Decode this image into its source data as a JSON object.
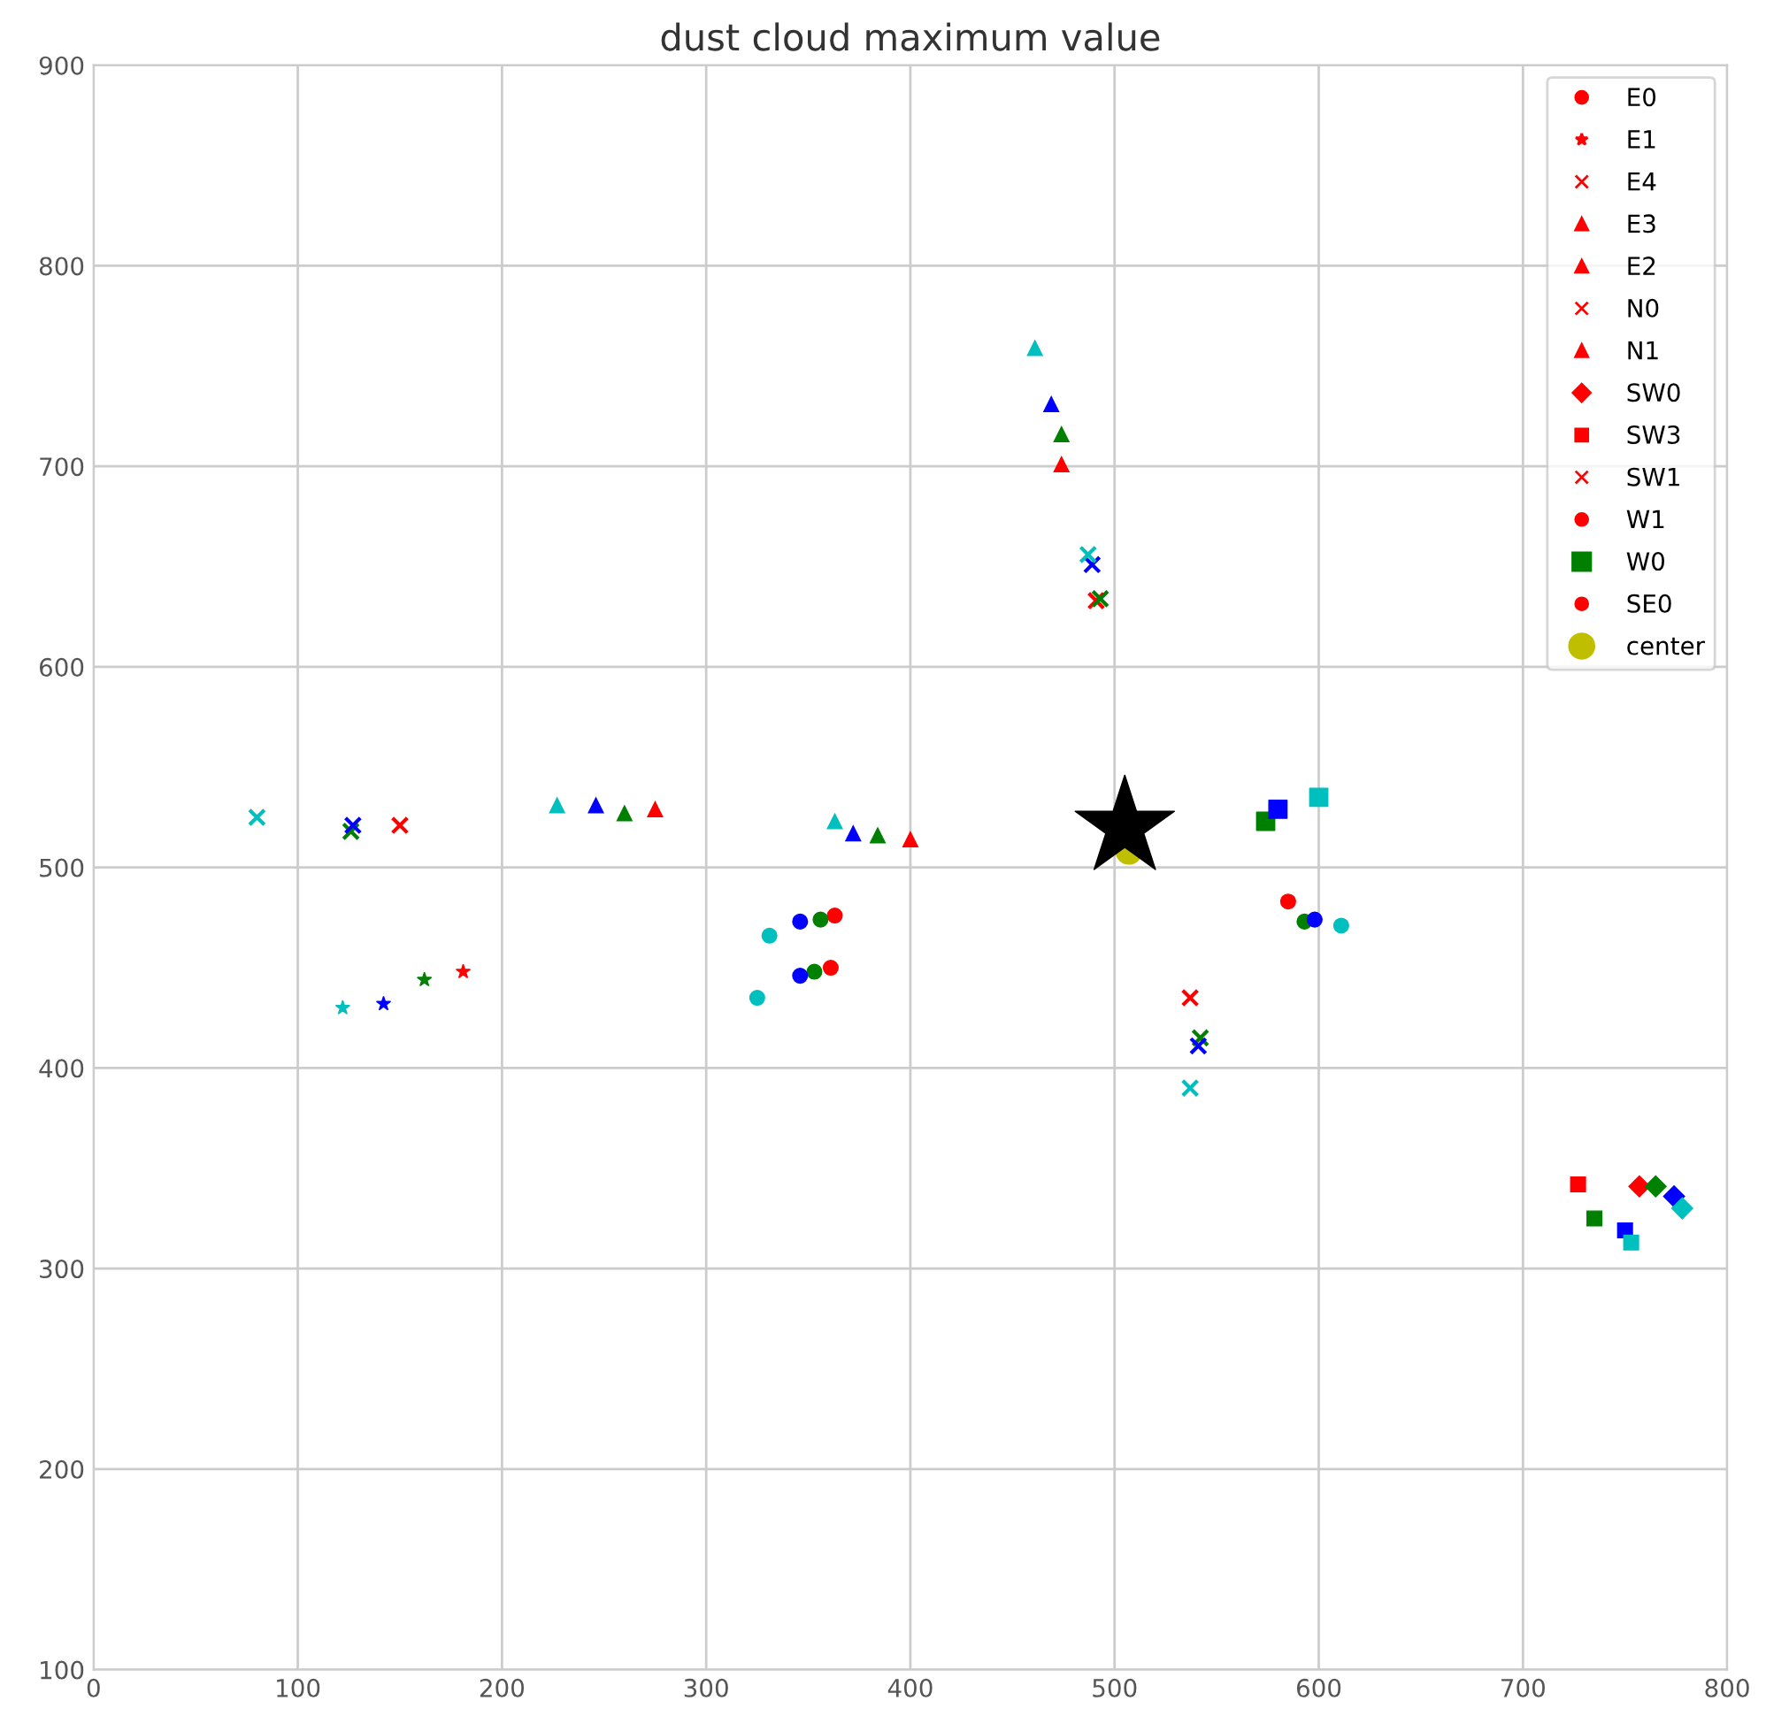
{
  "chart_data": {
    "type": "scatter",
    "title": "dust cloud maximum value",
    "xlim": [
      0,
      800
    ],
    "xticks": [
      0,
      100,
      200,
      300,
      400,
      500,
      600,
      700,
      800
    ],
    "ylim": [
      100,
      900
    ],
    "yticks": [
      100,
      200,
      300,
      400,
      500,
      600,
      700,
      800,
      900
    ],
    "grid": true,
    "legend": "top right",
    "series": [
      {
        "name": "E0",
        "marker": "circle",
        "x": [
          363,
          356,
          346,
          331
        ],
        "values": [
          476,
          474,
          473,
          466
        ],
        "colors": [
          "#ff0000",
          "#008000",
          "#0000ff",
          "#00bfbf"
        ]
      },
      {
        "name": "E1",
        "marker": "star",
        "x": [
          181,
          162,
          142,
          122
        ],
        "values": [
          448,
          444,
          432,
          430
        ],
        "colors": [
          "#ff0000",
          "#008000",
          "#0000ff",
          "#00bfbf"
        ]
      },
      {
        "name": "E4",
        "marker": "cross",
        "x": [
          150,
          126,
          127,
          80
        ],
        "values": [
          521,
          518,
          521,
          525
        ],
        "colors": [
          "#ff0000",
          "#008000",
          "#0000ff",
          "#00bfbf"
        ]
      },
      {
        "name": "E3",
        "marker": "triangle",
        "x": [
          275,
          260,
          246,
          227
        ],
        "values": [
          529,
          527,
          531,
          531
        ],
        "colors": [
          "#ff0000",
          "#008000",
          "#0000ff",
          "#00bfbf"
        ]
      },
      {
        "name": "E2",
        "marker": "triangle",
        "x": [
          400,
          384,
          372,
          363
        ],
        "values": [
          514,
          516,
          517,
          523
        ],
        "colors": [
          "#ff0000",
          "#008000",
          "#0000ff",
          "#00bfbf"
        ]
      },
      {
        "name": "N0",
        "marker": "cross",
        "x": [
          491,
          493,
          489,
          487
        ],
        "values": [
          633,
          634,
          651,
          656
        ],
        "colors": [
          "#ff0000",
          "#008000",
          "#0000ff",
          "#00bfbf"
        ]
      },
      {
        "name": "N1",
        "marker": "triangle",
        "x": [
          474,
          474,
          469,
          461
        ],
        "values": [
          701,
          716,
          731,
          759
        ],
        "colors": [
          "#ff0000",
          "#008000",
          "#0000ff",
          "#00bfbf"
        ]
      },
      {
        "name": "SW0",
        "marker": "diamond",
        "x": [
          757,
          765,
          774,
          778
        ],
        "values": [
          341,
          341,
          336,
          330
        ],
        "colors": [
          "#ff0000",
          "#008000",
          "#0000ff",
          "#00bfbf"
        ]
      },
      {
        "name": "SW3",
        "marker": "square",
        "x": [
          727,
          735,
          750,
          753
        ],
        "values": [
          342,
          325,
          319,
          313
        ],
        "colors": [
          "#ff0000",
          "#008000",
          "#0000ff",
          "#00bfbf"
        ]
      },
      {
        "name": "SW1",
        "marker": "cross",
        "x": [
          537,
          542,
          541,
          537
        ],
        "values": [
          435,
          415,
          411,
          390
        ],
        "colors": [
          "#ff0000",
          "#008000",
          "#0000ff",
          "#00bfbf"
        ]
      },
      {
        "name": "W1",
        "marker": "circle",
        "x": [
          361,
          353,
          346,
          325
        ],
        "values": [
          450,
          448,
          446,
          435
        ],
        "colors": [
          "#ff0000",
          "#008000",
          "#0000ff",
          "#00bfbf"
        ]
      },
      {
        "name": "W0",
        "type": "bubble",
        "marker": "square",
        "x": [
          null,
          574,
          580,
          600
        ],
        "values": [
          null,
          523,
          529,
          535
        ],
        "sizes": [
          null,
          0.107,
          0.107,
          0.107
        ],
        "colors": [
          "#ff0000",
          "#008000",
          "#0000ff",
          "#00bfbf"
        ]
      },
      {
        "name": "SE0",
        "marker": "circle",
        "x": [
          585,
          593,
          598,
          611
        ],
        "values": [
          483,
          473,
          474,
          471
        ],
        "colors": [
          "#ff0000",
          "#008000",
          "#0000ff",
          "#00bfbf"
        ]
      },
      {
        "name": "center",
        "type": "bubble",
        "marker": "circle",
        "x": [
          507
        ],
        "values": [
          508
        ],
        "sizes": [
          0.167
        ],
        "colors": [
          "#bfbf00"
        ]
      },
      {
        "type": "bubble",
        "marker": "star",
        "x": [
          505
        ],
        "values": [
          520
        ],
        "sizes": [
          1
        ],
        "colors": [
          "#000000"
        ]
      }
    ]
  }
}
